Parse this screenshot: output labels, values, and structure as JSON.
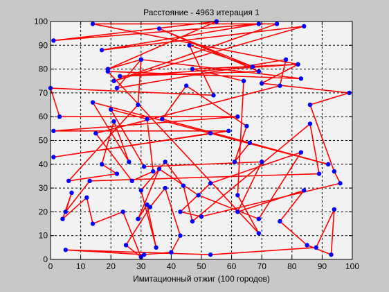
{
  "chart_data": {
    "type": "line",
    "title": "Расстояние - 4963 итерация 1",
    "xlabel": "Имитационный отжиг (100 городов)",
    "ylabel": "",
    "xlim": [
      0,
      100
    ],
    "ylim": [
      0,
      100
    ],
    "xticks": [
      "0",
      "10",
      "20",
      "30",
      "40",
      "50",
      "60",
      "70",
      "80",
      "90",
      "100"
    ],
    "yticks": [
      "0",
      "10",
      "20",
      "30",
      "40",
      "50",
      "60",
      "70",
      "80",
      "90",
      "100"
    ],
    "grid": true,
    "line_color": "#ff0000",
    "marker_color": "#0000ff",
    "axes_background": "#f2f2f2",
    "figure_background": "#c8c8c8",
    "series": [
      {
        "values": [
          {
            "x": 55,
            "y": 100
          },
          {
            "x": 1,
            "y": 92
          },
          {
            "x": 69,
            "y": 99
          },
          {
            "x": 17,
            "y": 88
          },
          {
            "x": 84,
            "y": 98
          },
          {
            "x": 21,
            "y": 75
          },
          {
            "x": 75,
            "y": 99
          },
          {
            "x": 14,
            "y": 99
          },
          {
            "x": 82,
            "y": 82
          },
          {
            "x": 23,
            "y": 77
          },
          {
            "x": 69,
            "y": 79
          },
          {
            "x": 36,
            "y": 97
          },
          {
            "x": 67,
            "y": 81
          },
          {
            "x": 46,
            "y": 90
          },
          {
            "x": 54,
            "y": 69
          },
          {
            "x": 0,
            "y": 72
          },
          {
            "x": 3,
            "y": 60
          },
          {
            "x": 62,
            "y": 60
          },
          {
            "x": 1,
            "y": 54
          },
          {
            "x": 59,
            "y": 54
          },
          {
            "x": 1,
            "y": 43
          },
          {
            "x": 53,
            "y": 53
          },
          {
            "x": 66,
            "y": 49
          },
          {
            "x": 61,
            "y": 41
          },
          {
            "x": 65,
            "y": 56
          },
          {
            "x": 45,
            "y": 73
          },
          {
            "x": 37,
            "y": 59
          },
          {
            "x": 92,
            "y": 40
          },
          {
            "x": 14,
            "y": 66
          },
          {
            "x": 26,
            "y": 41
          },
          {
            "x": 21,
            "y": 58
          },
          {
            "x": 17,
            "y": 40
          },
          {
            "x": 22,
            "y": 36
          },
          {
            "x": 6,
            "y": 33
          },
          {
            "x": 29,
            "y": 65
          },
          {
            "x": 30,
            "y": 84
          },
          {
            "x": 83,
            "y": 76
          },
          {
            "x": 19,
            "y": 79
          },
          {
            "x": 69,
            "y": 11
          },
          {
            "x": 62,
            "y": 27
          },
          {
            "x": 64,
            "y": 75
          },
          {
            "x": 47,
            "y": 80
          },
          {
            "x": 82,
            "y": 82
          },
          {
            "x": 70,
            "y": 74
          },
          {
            "x": 99,
            "y": 70
          },
          {
            "x": 86,
            "y": 65
          },
          {
            "x": 94,
            "y": 37
          },
          {
            "x": 96,
            "y": 32
          },
          {
            "x": 50,
            "y": 18
          },
          {
            "x": 43,
            "y": 20
          },
          {
            "x": 53,
            "y": 32
          },
          {
            "x": 83,
            "y": 45
          },
          {
            "x": 69,
            "y": 17
          },
          {
            "x": 49,
            "y": 27
          },
          {
            "x": 36,
            "y": 38
          },
          {
            "x": 29,
            "y": 17
          },
          {
            "x": 32,
            "y": 23
          },
          {
            "x": 35,
            "y": 5
          },
          {
            "x": 30,
            "y": 29
          },
          {
            "x": 38,
            "y": 41
          },
          {
            "x": 44,
            "y": 31
          },
          {
            "x": 47,
            "y": 16
          },
          {
            "x": 86,
            "y": 57
          },
          {
            "x": 89,
            "y": 36
          },
          {
            "x": 13,
            "y": 33
          },
          {
            "x": 5,
            "y": 20
          },
          {
            "x": 7,
            "y": 28
          },
          {
            "x": 4,
            "y": 17
          },
          {
            "x": 12,
            "y": 26
          },
          {
            "x": 14,
            "y": 15
          },
          {
            "x": 24,
            "y": 20
          },
          {
            "x": 30,
            "y": 1
          },
          {
            "x": 25,
            "y": 6
          },
          {
            "x": 33,
            "y": 22
          },
          {
            "x": 38,
            "y": 30
          },
          {
            "x": 43,
            "y": 10
          },
          {
            "x": 40,
            "y": 3
          },
          {
            "x": 31,
            "y": 2
          },
          {
            "x": 5,
            "y": 4
          },
          {
            "x": 53,
            "y": 2
          },
          {
            "x": 88,
            "y": 5
          },
          {
            "x": 94,
            "y": 21
          },
          {
            "x": 93,
            "y": 2
          },
          {
            "x": 85,
            "y": 6
          },
          {
            "x": 76,
            "y": 16
          },
          {
            "x": 84,
            "y": 29
          },
          {
            "x": 62,
            "y": 20
          },
          {
            "x": 70,
            "y": 41
          },
          {
            "x": 31,
            "y": 39
          },
          {
            "x": 20,
            "y": 63
          },
          {
            "x": 32,
            "y": 59
          },
          {
            "x": 34,
            "y": 37
          },
          {
            "x": 27,
            "y": 33
          },
          {
            "x": 15,
            "y": 53
          },
          {
            "x": 76,
            "y": 73
          },
          {
            "x": 78,
            "y": 84
          },
          {
            "x": 22,
            "y": 72
          },
          {
            "x": 30,
            "y": 84
          },
          {
            "x": 19,
            "y": 80
          },
          {
            "x": 55,
            "y": 100
          }
        ]
      }
    ]
  }
}
